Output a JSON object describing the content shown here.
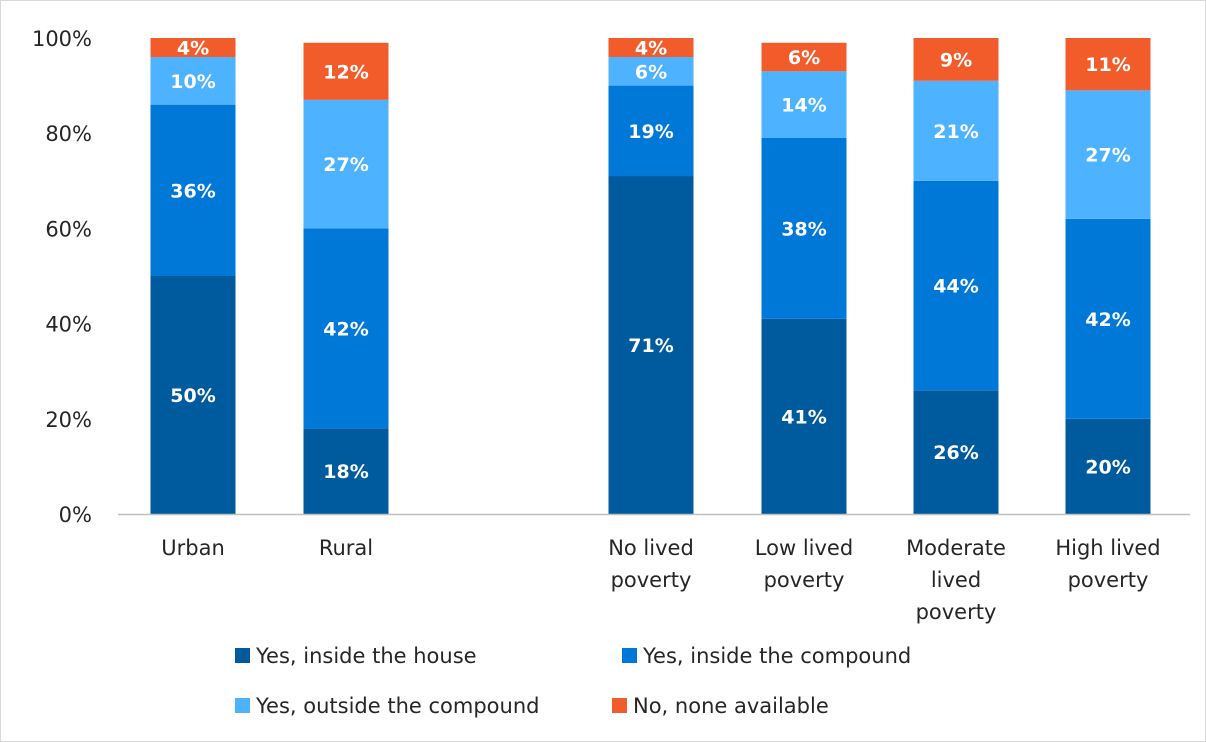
{
  "chart_data": {
    "type": "bar",
    "stacked": true,
    "categories": [
      [
        "Urban"
      ],
      [
        "Rural"
      ],
      [
        "No lived",
        "poverty"
      ],
      [
        "Low lived",
        "poverty"
      ],
      [
        "Moderate",
        "lived",
        "poverty"
      ],
      [
        "High lived",
        "poverty"
      ]
    ],
    "series": [
      {
        "name": "Yes, inside the house",
        "color": "#005a9e",
        "values": [
          50,
          18,
          71,
          41,
          26,
          20
        ],
        "labels": [
          "50%",
          "18%",
          "71%",
          "41%",
          "26%",
          "20%"
        ]
      },
      {
        "name": "Yes, inside the compound",
        "color": "#0078d7",
        "values": [
          36,
          42,
          19,
          38,
          44,
          42
        ],
        "labels": [
          "36%",
          "42%",
          "19%",
          "38%",
          "44%",
          "42%"
        ]
      },
      {
        "name": "Yes, outside the compound",
        "color": "#4db2ff",
        "values": [
          10,
          27,
          6,
          14,
          21,
          27
        ],
        "labels": [
          "10%",
          "27%",
          "6%",
          "14%",
          "21%",
          "27%"
        ]
      },
      {
        "name": "No, none available",
        "color": "#f25c2b",
        "values": [
          4,
          12,
          4,
          6,
          9,
          11
        ],
        "labels": [
          "4%",
          "12%",
          "4%",
          "6%",
          "9%",
          "11%"
        ]
      }
    ],
    "yticks": [
      "0%",
      "20%",
      "40%",
      "60%",
      "80%",
      "100%"
    ],
    "ylim": [
      0,
      100
    ],
    "legend_position": "bottom",
    "grid": false
  }
}
